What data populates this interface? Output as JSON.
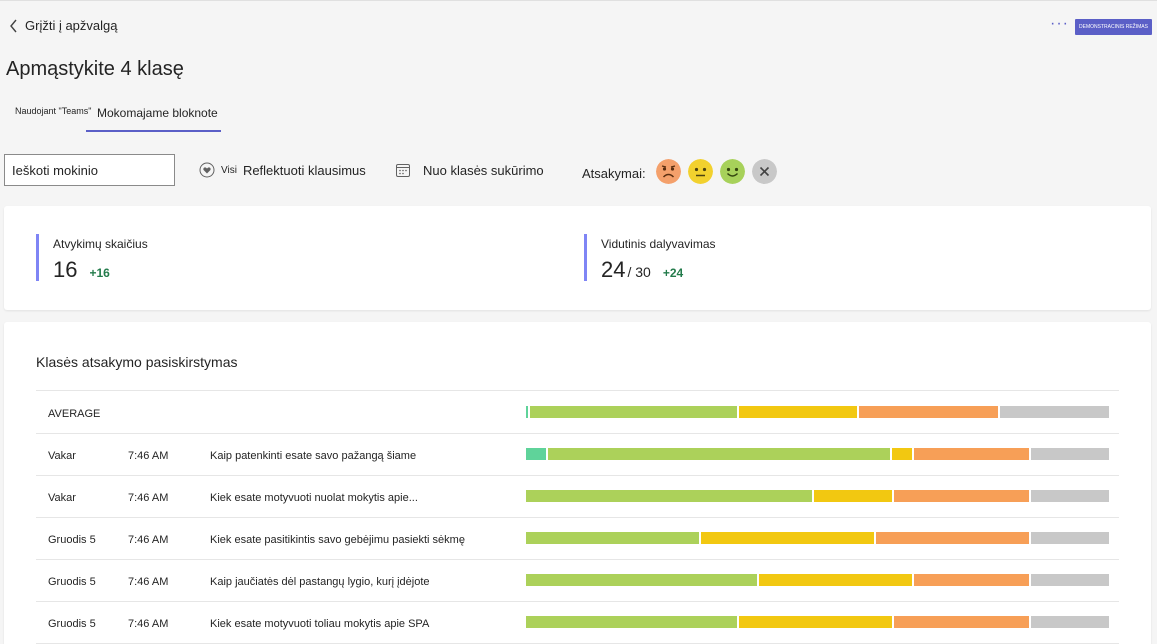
{
  "header": {
    "back_label": "Grįžti į apžvalgą",
    "more_label": "···",
    "demo_badge": "DEMONSTRACINIS REŽIMAS",
    "title": "Apmąstykite 4 klasę"
  },
  "tabs": [
    {
      "label": "Naudojant \"Teams\"",
      "active": false
    },
    {
      "label": "Mokomajame bloknote",
      "active": true
    }
  ],
  "filters": {
    "search_value": "Ieškoti mokinio",
    "questions_prefix": "Visi",
    "questions_label": "Reflektuoti klausimus",
    "date_label": "Nuo klasės sukūrimo",
    "responses_label": "Atsakymai:"
  },
  "emojis": [
    {
      "name": "sad-emoji-icon",
      "color": "#f4a06b"
    },
    {
      "name": "neutral-emoji-icon",
      "color": "#f2d12e"
    },
    {
      "name": "happy-emoji-icon",
      "color": "#a7d15a"
    },
    {
      "name": "clear-filter-icon",
      "color": "#c8c8c8"
    }
  ],
  "stats": [
    {
      "label": "Atvykimų skaičius",
      "value": "16",
      "of": "",
      "delta": "+16"
    },
    {
      "label": "Vidutinis dalyvavimas",
      "value": "24",
      "of": "/ 30",
      "delta": "+24"
    }
  ],
  "distribution": {
    "title": "Klasės atsakymo pasiskirstymas",
    "colors": {
      "very_positive": "#5fd39a",
      "positive": "#acd15a",
      "neutral": "#f2c811",
      "negative": "#f79f57",
      "none": "#c8c8c8"
    },
    "average_label": "AVERAGE",
    "average": [
      0.3,
      36,
      20.5,
      24,
      19
    ],
    "rows": [
      {
        "day": "Vakar",
        "time": "7:46 AM",
        "question": "Kaip patenkinti esate savo pažangą šiame",
        "segments": [
          3.5,
          59.5,
          3.5,
          20,
          13.5
        ]
      },
      {
        "day": "Vakar",
        "time": "7:46 AM",
        "question": "Kiek esate motyvuoti nuolat mokytis apie...",
        "segments": [
          0,
          49.5,
          13.5,
          23.5,
          13.5
        ]
      },
      {
        "day": "Gruodis 5",
        "time": "7:46 AM",
        "question": "Kiek esate pasitikintis savo gebėjimu pasiekti sėkmę",
        "segments": [
          0,
          30,
          30,
          26.5,
          13.5
        ]
      },
      {
        "day": "Gruodis 5",
        "time": "7:46 AM",
        "question": "Kaip jaučiatės dėl pastangų lygio, kurį įdėjote",
        "segments": [
          0,
          40,
          26.5,
          20,
          13.5
        ]
      },
      {
        "day": "Gruodis 5",
        "time": "7:46 AM",
        "question": "Kiek esate motyvuoti toliau mokytis apie SPA",
        "segments": [
          0,
          36.5,
          26.5,
          23.5,
          13.5
        ]
      }
    ]
  }
}
